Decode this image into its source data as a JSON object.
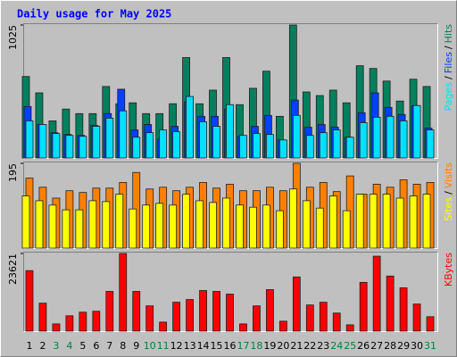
{
  "legend_separator": "/",
  "chart_data": [
    {
      "type": "bar",
      "title": "Daily usage for May 2025",
      "ylim": [
        0,
        1025
      ],
      "yticks": [
        1025
      ],
      "series": [
        {
          "name": "Hits",
          "color": "#00805c",
          "values": [
            628,
            502,
            286,
            377,
            342,
            342,
            551,
            418,
            425,
            342,
            342,
            418,
            774,
            418,
            523,
            774,
            411,
            537,
            669,
            321,
            1025,
            509,
            481,
            523,
            425,
            711,
            690,
            593,
            439,
            607,
            551
          ]
        },
        {
          "name": "Files",
          "color": "#0040ff",
          "values": [
            397,
            258,
            195,
            181,
            174,
            251,
            342,
            530,
            216,
            258,
            146,
            244,
            432,
            321,
            321,
            377,
            167,
            244,
            328,
            139,
            446,
            237,
            258,
            237,
            160,
            349,
            502,
            390,
            335,
            404,
            230
          ]
        },
        {
          "name": "Pages",
          "color": "#00e0ff",
          "values": [
            286,
            258,
            188,
            174,
            167,
            244,
            307,
            363,
            160,
            195,
            216,
            202,
            474,
            279,
            244,
            411,
            174,
            188,
            181,
            139,
            328,
            174,
            195,
            216,
            160,
            272,
            314,
            321,
            286,
            404,
            216
          ]
        }
      ]
    },
    {
      "type": "bar",
      "ylim": [
        0,
        195
      ],
      "yticks": [
        195
      ],
      "series": [
        {
          "name": "Visits",
          "color": "#ff8000",
          "values": [
            161,
            140,
            115,
            132,
            128,
            138,
            138,
            151,
            174,
            136,
            140,
            132,
            140,
            151,
            138,
            147,
            132,
            132,
            140,
            132,
            195,
            140,
            151,
            130,
            166,
            124,
            147,
            140,
            157,
            147,
            151
          ]
        },
        {
          "name": "Sites",
          "color": "#ffff00",
          "values": [
            120,
            109,
            99,
            88,
            88,
            109,
            107,
            124,
            90,
            99,
            103,
            99,
            124,
            109,
            105,
            115,
            99,
            94,
            99,
            86,
            136,
            109,
            92,
            120,
            86,
            124,
            124,
            124,
            115,
            120,
            124
          ]
        }
      ]
    },
    {
      "type": "bar",
      "ylim": [
        0,
        23621
      ],
      "yticks": [
        23621
      ],
      "categories": [
        "1",
        "2",
        "3",
        "4",
        "5",
        "6",
        "7",
        "8",
        "9",
        "10",
        "11",
        "12",
        "13",
        "14",
        "15",
        "16",
        "17",
        "18",
        "19",
        "20",
        "21",
        "22",
        "23",
        "24",
        "25",
        "26",
        "27",
        "28",
        "29",
        "30",
        "31"
      ],
      "category_colors": [
        "#000000",
        "#000000",
        "#008040",
        "#008040",
        "#000000",
        "#000000",
        "#000000",
        "#000000",
        "#000000",
        "#008040",
        "#008040",
        "#000000",
        "#000000",
        "#000000",
        "#000000",
        "#000000",
        "#008040",
        "#008040",
        "#000000",
        "#000000",
        "#000000",
        "#000000",
        "#000000",
        "#008040",
        "#008040",
        "#000000",
        "#000000",
        "#000000",
        "#000000",
        "#000000",
        "#008040"
      ],
      "series": [
        {
          "name": "KBytes",
          "color": "#ff0000",
          "values": [
            18403,
            8515,
            2197,
            4669,
            5768,
            6043,
            12085,
            23621,
            12085,
            7691,
            2747,
            8789,
            9613,
            12360,
            12085,
            11261,
            2197,
            7691,
            12635,
            3021,
            16480,
            7965,
            8789,
            5493,
            1923,
            14832,
            22797,
            16754,
            13184,
            8240,
            4395
          ]
        }
      ]
    }
  ]
}
